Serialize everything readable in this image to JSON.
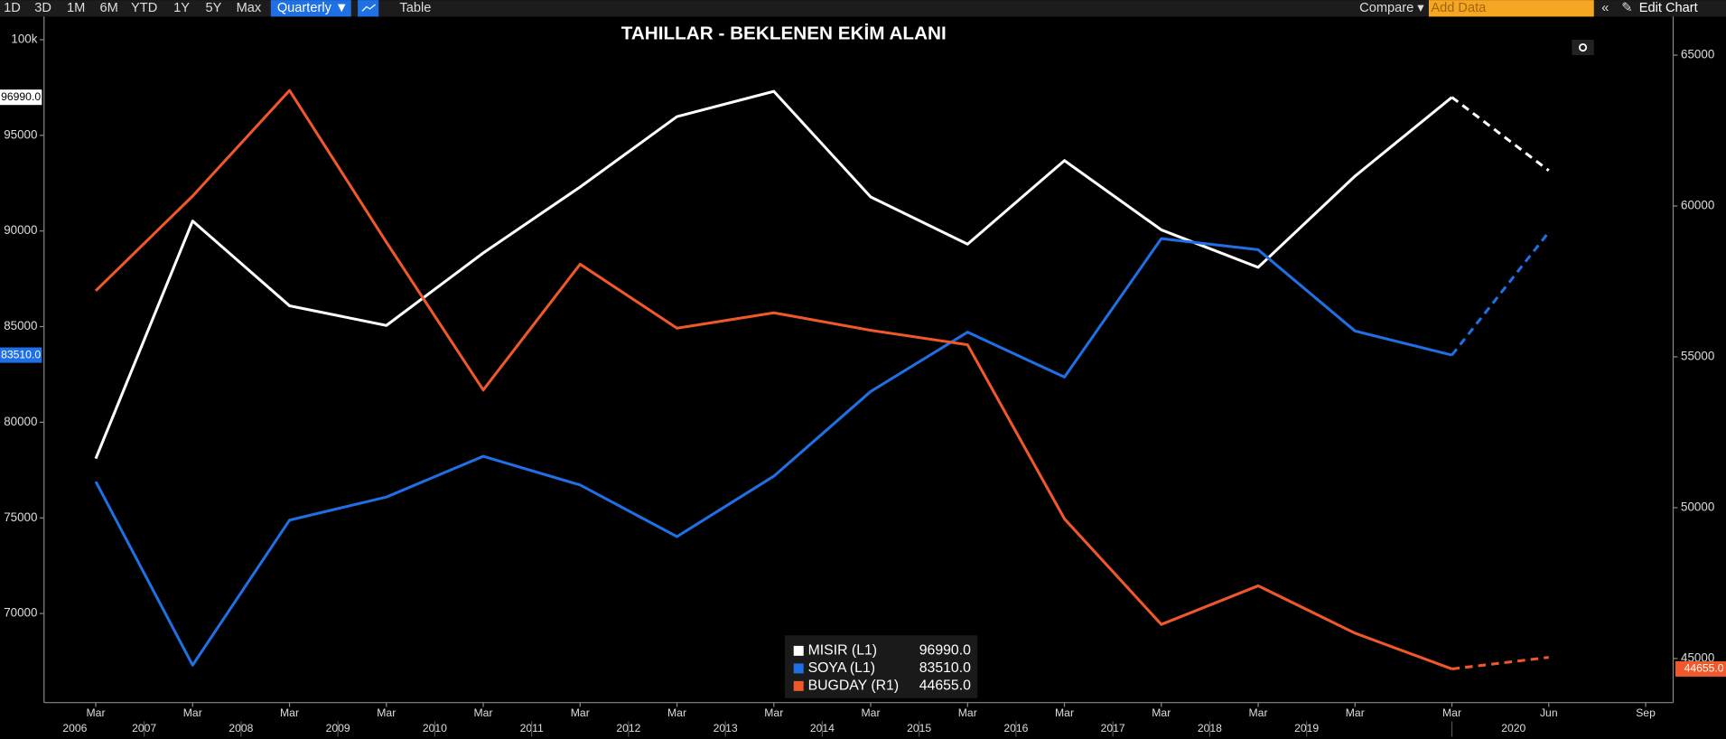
{
  "toolbar": {
    "ranges": [
      "1D",
      "3D",
      "1M",
      "6M",
      "YTD",
      "1Y",
      "5Y",
      "Max"
    ],
    "frequency": "Quarterly ▼",
    "table": "Table",
    "compare": "Compare ▾",
    "add_data": "Add Data",
    "edit_chart": "Edit Chart"
  },
  "chart_data": {
    "type": "line",
    "title": "TAHILLAR - BEKLENEN EKİM ALANI",
    "categories": [
      "Mar",
      "Mar",
      "Mar",
      "Mar",
      "Mar",
      "Mar",
      "Mar",
      "Mar",
      "Mar",
      "Mar",
      "Mar",
      "Mar",
      "Mar",
      "Mar",
      "Mar",
      "Jun",
      "Sep"
    ],
    "years": [
      "2006",
      "2007",
      "2008",
      "2009",
      "2010",
      "2011",
      "2012",
      "2013",
      "2014",
      "2015",
      "2016",
      "2017",
      "2018",
      "2019",
      "2020"
    ],
    "dashed_from": 14,
    "series": [
      {
        "name": "MISIR (L1)",
        "color": "#ffffff",
        "axis": "y",
        "values": [
          78100,
          90520,
          86090,
          85060,
          88850,
          92300,
          95980,
          97300,
          91780,
          89310,
          93680,
          90060,
          88100,
          92870,
          96990,
          93160,
          null
        ],
        "value_labels": [
          null,
          null,
          null,
          null,
          null,
          null,
          null,
          null,
          null,
          null,
          null,
          null,
          null,
          null,
          "96990.0",
          null,
          null
        ]
      },
      {
        "name": "SOYA (L1)",
        "color": "#1f6fe5",
        "axis": "y",
        "values": [
          76900,
          67300,
          74880,
          76090,
          78220,
          76720,
          74020,
          77180,
          81610,
          84710,
          82360,
          89600,
          89020,
          84770,
          83510,
          89940,
          null
        ],
        "value_labels": [
          null,
          null,
          null,
          null,
          null,
          null,
          null,
          null,
          null,
          null,
          null,
          null,
          null,
          null,
          "83510.0",
          null,
          null
        ]
      },
      {
        "name": "BUGDAY (R1)",
        "color": "#f0582a",
        "axis": "y2",
        "values": [
          57190,
          60330,
          63830,
          58800,
          53900,
          58070,
          55950,
          56460,
          55880,
          55400,
          49630,
          46130,
          47410,
          45840,
          44655,
          45040,
          null
        ],
        "value_labels": [
          null,
          null,
          null,
          null,
          null,
          null,
          null,
          null,
          null,
          null,
          null,
          null,
          null,
          null,
          "44655.0",
          null,
          null
        ]
      }
    ],
    "ylim": [
      65345,
      101207
    ],
    "yticks": [
      70000,
      75000,
      80000,
      85000,
      90000,
      95000,
      {
        "value": 100000,
        "label": "100k"
      }
    ],
    "y2lim": [
      43540,
      66277
    ],
    "y2ticks": [
      45000,
      50000,
      55000,
      60000,
      65000
    ]
  }
}
